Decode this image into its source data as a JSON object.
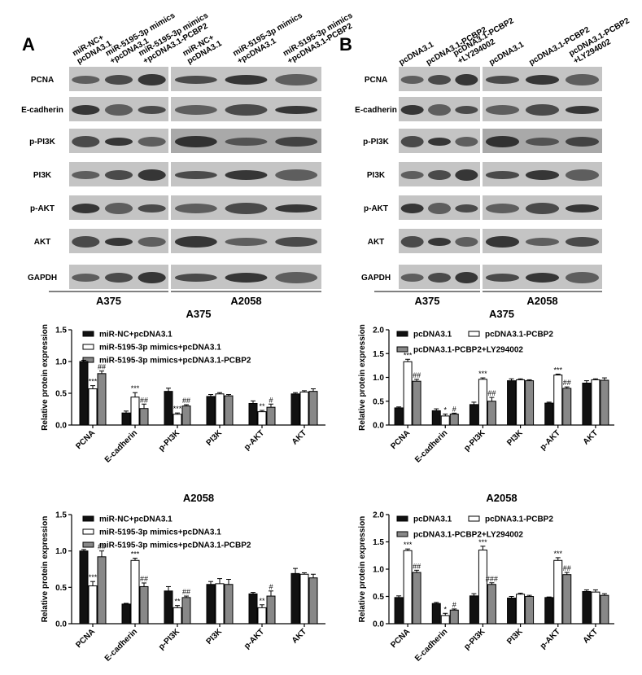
{
  "blots": [
    {
      "letter": "A",
      "rows": [
        "PCNA",
        "E-cadherin",
        "p-PI3K",
        "PI3K",
        "p-AKT",
        "AKT",
        "GAPDH"
      ],
      "columns": [
        [
          "miR-NC+",
          "pcDNA3.1"
        ],
        [
          "miR-5195-3p mimics",
          "+pcDNA3.1"
        ],
        [
          "miR-5195-3p mimics",
          "+pcDNA3.1-PCBP2"
        ],
        [
          "miR-NC+",
          "pcDNA3.1"
        ],
        [
          "miR-5195-3p mimics",
          "+pcDNA3.1"
        ],
        [
          "miR-5195-3p mimics",
          "+pcDNA3.1-PCBP2"
        ]
      ],
      "groups": [
        "A375",
        "A2058"
      ]
    },
    {
      "letter": "B",
      "rows": [
        "PCNA",
        "E-cadherin",
        "p-PI3K",
        "PI3K",
        "p-AKT",
        "AKT",
        "GAPDH"
      ],
      "columns": [
        [
          "pcDNA3.1"
        ],
        [
          "pcDNA3.1-PCBP2"
        ],
        [
          "pcDNA3.1-PCBP2",
          "+LY294002"
        ],
        [
          "pcDNA3.1"
        ],
        [
          "pcDNA3.1-PCBP2"
        ],
        [
          "pcDNA3.1-PCBP2",
          "+LY294002"
        ]
      ],
      "groups": [
        "A375",
        "A2058"
      ]
    }
  ],
  "chart_data": [
    {
      "type": "bar",
      "title": "A375",
      "y_label": "Relative protein expression",
      "categories": [
        "PCNA",
        "E-cadherin",
        "p-PI3K",
        "PI3K",
        "p-AKT",
        "AKT"
      ],
      "ylim": [
        0,
        1.5
      ],
      "yticks": [
        {
          "value": 0,
          "label": "0.0"
        },
        0.5,
        {
          "value": 1,
          "label": "1.0"
        },
        1.5
      ],
      "legend": "upper left",
      "series": [
        {
          "name": "miR-NC+pcDNA3.1",
          "color": "#111111",
          "values": [
            1.0,
            0.19,
            0.53,
            0.45,
            0.34,
            0.49
          ],
          "errors": [
            0.02,
            0.03,
            0.05,
            0.03,
            0.04,
            0.02
          ],
          "annotations": [
            null,
            null,
            null,
            null,
            null,
            null
          ]
        },
        {
          "name": "miR-5195-3p mimics+pcDNA3.1",
          "color": "#ffffff",
          "values": [
            0.57,
            0.44,
            0.17,
            0.49,
            0.21,
            0.52
          ],
          "errors": [
            0.05,
            0.07,
            0.02,
            0.02,
            0.02,
            0.02
          ],
          "annotations": [
            "***",
            "***",
            "***",
            null,
            "**",
            null
          ]
        },
        {
          "name": "miR-5195-3p mimics+pcDNA3.1-PCBP2",
          "color": "#888888",
          "values": [
            0.81,
            0.26,
            0.3,
            0.46,
            0.28,
            0.53
          ],
          "errors": [
            0.04,
            0.07,
            0.02,
            0.02,
            0.05,
            0.04
          ],
          "annotations": [
            "##",
            "##",
            "##",
            null,
            "#",
            null
          ]
        }
      ]
    },
    {
      "type": "bar",
      "title": "A2058",
      "y_label": "Relative protein expression",
      "categories": [
        "PCNA",
        "E-cadherin",
        "p-PI3K",
        "PI3K",
        "p-AKT",
        "AKT"
      ],
      "ylim": [
        0,
        1.5
      ],
      "yticks": [
        {
          "value": 0,
          "label": "0.0"
        },
        0.5,
        {
          "value": 1,
          "label": "1.0"
        },
        1.5
      ],
      "legend": "upper left",
      "series": [
        {
          "name": "miR-NC+pcDNA3.1",
          "color": "#111111",
          "values": [
            1.0,
            0.27,
            0.45,
            0.54,
            0.41,
            0.69
          ],
          "errors": [
            0.02,
            0.01,
            0.06,
            0.04,
            0.02,
            0.07
          ],
          "annotations": [
            null,
            null,
            null,
            null,
            null,
            null
          ]
        },
        {
          "name": "miR-5195-3p mimics+pcDNA3.1",
          "color": "#ffffff",
          "values": [
            0.52,
            0.87,
            0.22,
            0.55,
            0.22,
            0.68
          ],
          "errors": [
            0.06,
            0.03,
            0.03,
            0.07,
            0.04,
            0.02
          ],
          "annotations": [
            "***",
            "***",
            "**",
            null,
            "**",
            null
          ]
        },
        {
          "name": "miR-5195-3p mimics+pcDNA3.1-PCBP2",
          "color": "#888888",
          "values": [
            0.92,
            0.51,
            0.36,
            0.54,
            0.38,
            0.63
          ],
          "errors": [
            0.08,
            0.05,
            0.02,
            0.07,
            0.07,
            0.05
          ],
          "annotations": [
            "##",
            "##",
            "##",
            null,
            "#",
            null
          ]
        }
      ]
    },
    {
      "type": "bar",
      "title": "A375",
      "y_label": "Relative protein expression",
      "categories": [
        "PCNA",
        "E-cadherin",
        "p-PI3K",
        "PI3K",
        "p-AKT",
        "AKT"
      ],
      "ylim": [
        0,
        2
      ],
      "yticks": [
        {
          "value": 0,
          "label": "0.0"
        },
        0.5,
        {
          "value": 1,
          "label": "1.0"
        },
        1.5,
        {
          "value": 2,
          "label": "2.0"
        }
      ],
      "legend": "upper left",
      "series": [
        {
          "name": "pcDNA3.1",
          "color": "#111111",
          "values": [
            0.36,
            0.3,
            0.43,
            0.93,
            0.46,
            0.88
          ],
          "errors": [
            0.02,
            0.04,
            0.05,
            0.04,
            0.02,
            0.05
          ],
          "annotations": [
            null,
            null,
            null,
            null,
            null,
            null
          ]
        },
        {
          "name": "pcDNA3.1-PCBP2",
          "color": "#ffffff",
          "values": [
            1.33,
            0.19,
            0.96,
            0.95,
            1.05,
            0.95
          ],
          "errors": [
            0.05,
            0.04,
            0.03,
            0.02,
            0.02,
            0.02
          ],
          "annotations": [
            "***",
            "*",
            "***",
            null,
            "***",
            null
          ]
        },
        {
          "name": "pcDNA3.1-PCBP2+LY294002",
          "color": "#888888",
          "values": [
            0.92,
            0.23,
            0.5,
            0.93,
            0.77,
            0.94
          ],
          "errors": [
            0.04,
            0.02,
            0.08,
            0.02,
            0.03,
            0.05
          ],
          "annotations": [
            "##",
            "#",
            "##",
            null,
            "##",
            null
          ]
        }
      ]
    },
    {
      "type": "bar",
      "title": "A2058",
      "y_label": "Relative protein expression",
      "categories": [
        "PCNA",
        "E-cadherin",
        "p-PI3K",
        "PI3K",
        "p-AKT",
        "AKT"
      ],
      "ylim": [
        0,
        2
      ],
      "yticks": [
        {
          "value": 0,
          "label": "0.0"
        },
        0.5,
        {
          "value": 1,
          "label": "1.0"
        },
        1.5,
        {
          "value": 2,
          "label": "2.0"
        }
      ],
      "legend": "upper left",
      "series": [
        {
          "name": "pcDNA3.1",
          "color": "#111111",
          "values": [
            0.48,
            0.37,
            0.51,
            0.47,
            0.48,
            0.59
          ],
          "errors": [
            0.03,
            0.02,
            0.04,
            0.03,
            0.01,
            0.03
          ],
          "annotations": [
            null,
            null,
            null,
            null,
            null,
            null
          ]
        },
        {
          "name": "pcDNA3.1-PCBP2",
          "color": "#ffffff",
          "values": [
            1.34,
            0.15,
            1.35,
            0.54,
            1.16,
            0.58
          ],
          "errors": [
            0.03,
            0.04,
            0.07,
            0.02,
            0.05,
            0.04
          ],
          "annotations": [
            "***",
            "*",
            "***",
            null,
            "***",
            null
          ]
        },
        {
          "name": "pcDNA3.1-PCBP2+LY294002",
          "color": "#888888",
          "values": [
            0.94,
            0.25,
            0.72,
            0.5,
            0.9,
            0.52
          ],
          "errors": [
            0.04,
            0.02,
            0.03,
            0.02,
            0.04,
            0.03
          ],
          "annotations": [
            "##",
            "#",
            "###",
            null,
            "##",
            null
          ]
        }
      ]
    }
  ]
}
